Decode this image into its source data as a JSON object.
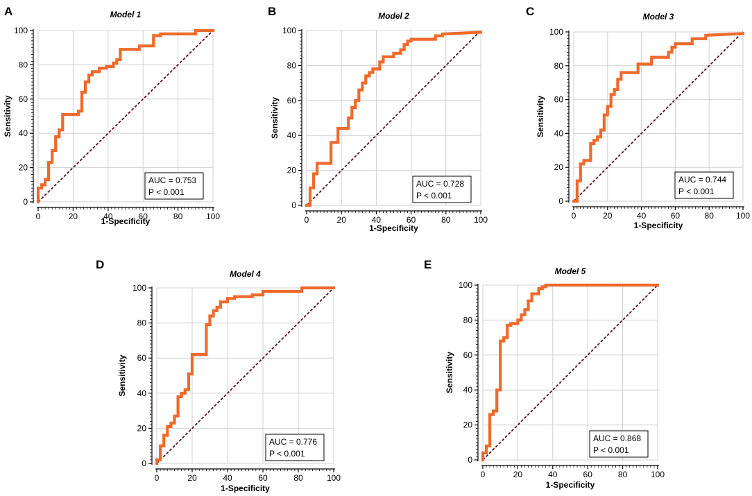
{
  "figure": {
    "curve_color": "#ee6a2c",
    "diagonal_color": "#5a1020",
    "grid_color": "#d0d0d0"
  },
  "chart_data": [
    {
      "panel": "A",
      "type": "line",
      "title": "Model 1",
      "xlabel": "1-Specificity",
      "ylabel": "Sensitivity",
      "xlim": [
        0,
        100
      ],
      "ylim": [
        0,
        100
      ],
      "xticks": [
        "0",
        "20",
        "40",
        "60",
        "80",
        "100"
      ],
      "yticks": [
        "0",
        "20",
        "40",
        "60",
        "80",
        "100"
      ],
      "auc_label": "AUC = 0.753",
      "p_label": "P < 0.001",
      "series": [
        {
          "name": "ROC",
          "step": true,
          "x": [
            0,
            0,
            2,
            2,
            4,
            4,
            6,
            6,
            8,
            8,
            10,
            10,
            12,
            12,
            14,
            14,
            16,
            16,
            23,
            23,
            25,
            25,
            27,
            27,
            29,
            29,
            31,
            31,
            35,
            35,
            39,
            39,
            43,
            43,
            45,
            45,
            47,
            47,
            50,
            50,
            58,
            58,
            66,
            66,
            70,
            70,
            90,
            90,
            100
          ],
          "y": [
            0,
            8,
            8,
            10,
            10,
            13,
            13,
            23,
            23,
            30,
            30,
            38,
            38,
            42,
            42,
            51,
            51,
            51,
            51,
            53,
            53,
            64,
            64,
            70,
            70,
            74,
            74,
            76,
            76,
            78,
            78,
            79,
            79,
            81,
            81,
            83,
            83,
            89,
            89,
            89,
            89,
            91,
            91,
            97,
            97,
            98,
            98,
            100,
            100
          ]
        },
        {
          "name": "Reference",
          "x": [
            0,
            100
          ],
          "y": [
            0,
            100
          ]
        }
      ]
    },
    {
      "panel": "B",
      "type": "line",
      "title": "Model 2",
      "xlabel": "1-Specificity",
      "ylabel": "Sensitivity",
      "xlim": [
        0,
        100
      ],
      "ylim": [
        0,
        100
      ],
      "xticks": [
        "0",
        "20",
        "40",
        "60",
        "80",
        "100"
      ],
      "yticks": [
        "0",
        "20",
        "40",
        "60",
        "80",
        "100"
      ],
      "auc_label": "AUC = 0.728",
      "p_label": "P < 0.001",
      "series": [
        {
          "name": "ROC",
          "step": true,
          "x": [
            0,
            2,
            2,
            4,
            4,
            6,
            6,
            8,
            8,
            14,
            14,
            18,
            18,
            22,
            22,
            24,
            24,
            26,
            26,
            28,
            28,
            30,
            30,
            32,
            32,
            34,
            34,
            36,
            36,
            38,
            38,
            42,
            42,
            44,
            44,
            50,
            50,
            54,
            54,
            56,
            56,
            58,
            58,
            60,
            60,
            74,
            74,
            78,
            78,
            100
          ],
          "y": [
            0,
            0,
            10,
            10,
            18,
            18,
            24,
            24,
            24,
            24,
            36,
            36,
            44,
            44,
            44,
            44,
            50,
            50,
            56,
            56,
            60,
            60,
            66,
            66,
            70,
            70,
            74,
            74,
            76,
            76,
            78,
            78,
            82,
            82,
            85,
            85,
            87,
            87,
            89,
            89,
            92,
            92,
            94,
            94,
            95,
            95,
            97,
            97,
            98,
            99
          ]
        },
        {
          "name": "Reference",
          "x": [
            0,
            100
          ],
          "y": [
            0,
            100
          ]
        }
      ]
    },
    {
      "panel": "C",
      "type": "line",
      "title": "Model 3",
      "xlabel": "1-Specificity",
      "ylabel": "Sensitivity",
      "xlim": [
        0,
        100
      ],
      "ylim": [
        0,
        100
      ],
      "xticks": [
        "0",
        "20",
        "40",
        "60",
        "80",
        "100"
      ],
      "yticks": [
        "0",
        "20",
        "40",
        "60",
        "80",
        "100"
      ],
      "auc_label": "AUC = 0.744",
      "p_label": "P < 0.001",
      "series": [
        {
          "name": "ROC",
          "step": true,
          "x": [
            0,
            2,
            2,
            4,
            4,
            6,
            6,
            10,
            10,
            12,
            12,
            14,
            14,
            16,
            16,
            18,
            18,
            20,
            20,
            22,
            22,
            24,
            24,
            26,
            26,
            28,
            28,
            30,
            30,
            38,
            38,
            46,
            46,
            56,
            56,
            58,
            58,
            60,
            60,
            70,
            70,
            78,
            78,
            100
          ],
          "y": [
            0,
            0,
            12,
            12,
            22,
            22,
            24,
            24,
            34,
            34,
            36,
            36,
            38,
            38,
            42,
            42,
            51,
            51,
            56,
            56,
            63,
            63,
            66,
            66,
            72,
            72,
            76,
            76,
            76,
            76,
            81,
            81,
            85,
            85,
            88,
            88,
            91,
            91,
            93,
            93,
            96,
            96,
            98,
            99
          ]
        },
        {
          "name": "Reference",
          "x": [
            0,
            100
          ],
          "y": [
            0,
            100
          ]
        }
      ]
    },
    {
      "panel": "D",
      "type": "line",
      "title": "Model 4",
      "xlabel": "1-Specificity",
      "ylabel": "Sensitivity",
      "xlim": [
        0,
        100
      ],
      "ylim": [
        0,
        100
      ],
      "xticks": [
        "0",
        "20",
        "40",
        "60",
        "80",
        "100"
      ],
      "yticks": [
        "0",
        "20",
        "40",
        "60",
        "80",
        "100"
      ],
      "auc_label": "AUC = 0.776",
      "p_label": "P < 0.001",
      "series": [
        {
          "name": "ROC",
          "step": true,
          "x": [
            0,
            0,
            2,
            2,
            4,
            4,
            6,
            6,
            8,
            8,
            10,
            10,
            12,
            12,
            14,
            14,
            16,
            16,
            18,
            18,
            20,
            20,
            22,
            22,
            24,
            24,
            28,
            28,
            30,
            30,
            32,
            32,
            34,
            34,
            36,
            36,
            40,
            40,
            44,
            44,
            54,
            54,
            60,
            60,
            82,
            82,
            100
          ],
          "y": [
            0,
            2,
            2,
            10,
            10,
            16,
            16,
            21,
            21,
            23,
            23,
            27,
            27,
            38,
            38,
            40,
            40,
            42,
            42,
            51,
            51,
            62,
            62,
            62,
            62,
            62,
            62,
            79,
            79,
            84,
            84,
            87,
            87,
            89,
            89,
            92,
            92,
            94,
            94,
            95,
            95,
            96,
            96,
            98,
            98,
            100,
            100
          ]
        },
        {
          "name": "Reference",
          "x": [
            0,
            100
          ],
          "y": [
            0,
            100
          ]
        }
      ]
    },
    {
      "panel": "E",
      "type": "line",
      "title": "Model 5",
      "xlabel": "1-Specificity",
      "ylabel": "Sensitivity",
      "xlim": [
        0,
        100
      ],
      "ylim": [
        0,
        100
      ],
      "xticks": [
        "0",
        "20",
        "40",
        "60",
        "80",
        "100"
      ],
      "yticks": [
        "0",
        "20",
        "40",
        "60",
        "80",
        "100"
      ],
      "auc_label": "AUC = 0.868",
      "p_label": "P < 0.001",
      "series": [
        {
          "name": "ROC",
          "step": true,
          "x": [
            0,
            0,
            2,
            2,
            4,
            4,
            6,
            6,
            8,
            8,
            10,
            10,
            12,
            12,
            14,
            14,
            16,
            16,
            20,
            20,
            22,
            22,
            24,
            24,
            26,
            26,
            28,
            28,
            32,
            32,
            34,
            34,
            36,
            36,
            100
          ],
          "y": [
            0,
            4,
            4,
            8,
            8,
            26,
            26,
            28,
            28,
            40,
            40,
            68,
            68,
            70,
            70,
            77,
            77,
            78,
            78,
            80,
            80,
            83,
            83,
            86,
            86,
            91,
            91,
            95,
            95,
            98,
            98,
            99,
            99,
            100,
            100
          ]
        },
        {
          "name": "Reference",
          "x": [
            0,
            100
          ],
          "y": [
            0,
            100
          ]
        }
      ]
    }
  ]
}
